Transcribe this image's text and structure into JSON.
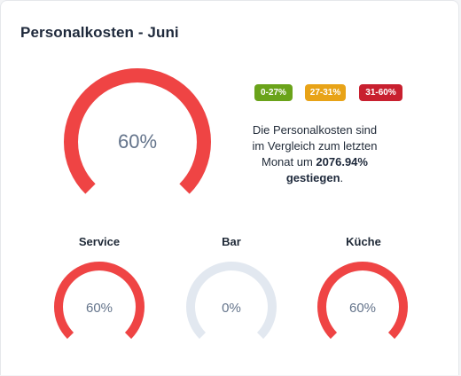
{
  "card": {
    "title": "Personalkosten - Juni"
  },
  "main_gauge": {
    "value_label": "60%",
    "percent": 60,
    "color": "#ef4444"
  },
  "legend": [
    {
      "label": "0-27%",
      "color": "#6aa31a"
    },
    {
      "label": "27-31%",
      "color": "#e8a317"
    },
    {
      "label": "31-60%",
      "color": "#c8202f"
    }
  ],
  "description": {
    "line1": "Die Personalkosten sind",
    "line2": "im Vergleich zum letzten",
    "line3_prefix": "Monat um ",
    "change": "2076.94%",
    "direction": "gestiegen",
    "suffix": "."
  },
  "departments": [
    {
      "name": "Service",
      "value_label": "60%",
      "percent": 60,
      "color": "#ef4444"
    },
    {
      "name": "Bar",
      "value_label": "0%",
      "percent": 0,
      "color": "#e2e8f0"
    },
    {
      "name": "Küche",
      "value_label": "60%",
      "percent": 60,
      "color": "#ef4444"
    }
  ],
  "track_color": "#e2e8f0"
}
